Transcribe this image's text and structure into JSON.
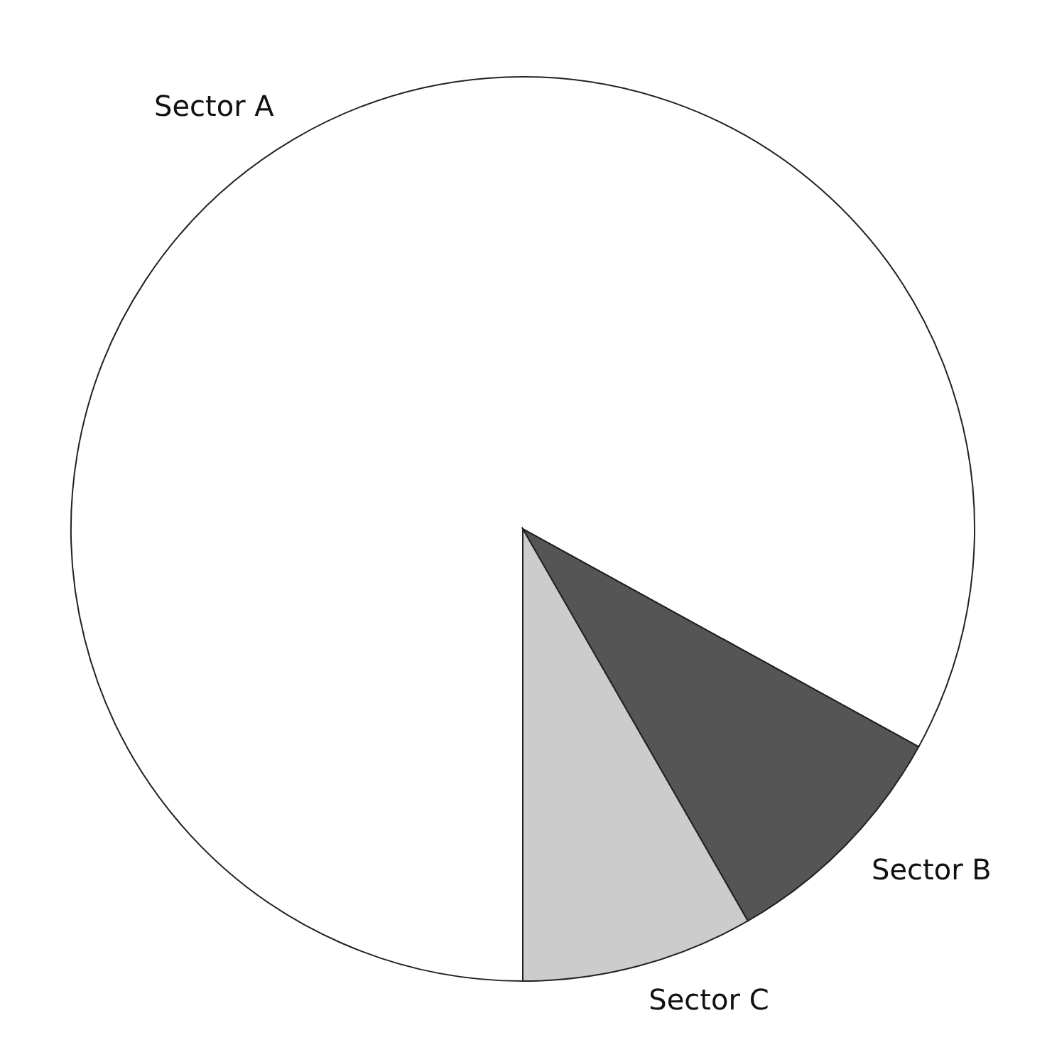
{
  "chart_data": {
    "type": "pie",
    "categories": [
      "Sector A",
      "Sector B",
      "Sector C"
    ],
    "values": [
      83,
      8.7,
      8.3
    ],
    "colors": [
      "#ffffff",
      "#555555",
      "#cccccc"
    ]
  }
}
